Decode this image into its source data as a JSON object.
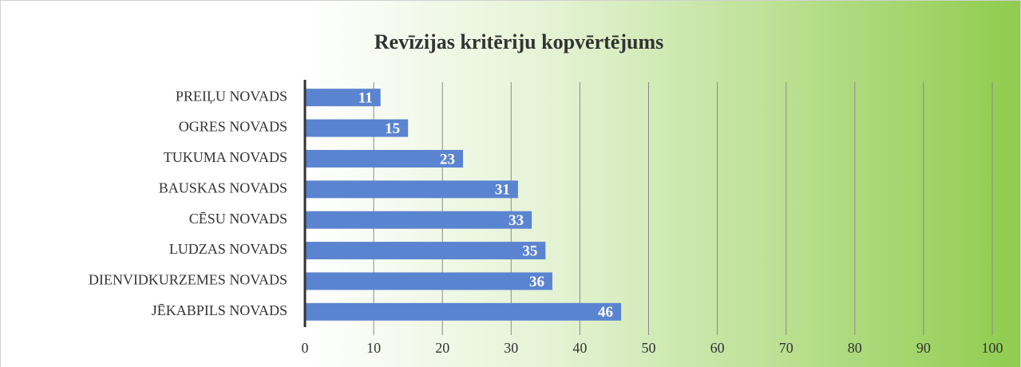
{
  "chart_data": {
    "type": "bar",
    "title": "Revīzijas kritēriju kopvērtējums",
    "categories": [
      "PREIĻU NOVADS",
      "OGRES NOVADS",
      "TUKUMA NOVADS",
      "BAUSKAS NOVADS",
      "CĒSU NOVADS",
      "LUDZAS NOVADS",
      "DIENVIDKURZEMES NOVADS",
      "JĒKABPILS NOVADS"
    ],
    "values": [
      11,
      15,
      23,
      31,
      33,
      35,
      36,
      46
    ],
    "color": "#5b84d0",
    "xlim": [
      0,
      100
    ],
    "xticks": [
      0,
      10,
      20,
      30,
      40,
      50,
      60,
      70,
      80,
      90,
      100
    ],
    "grid": true
  }
}
